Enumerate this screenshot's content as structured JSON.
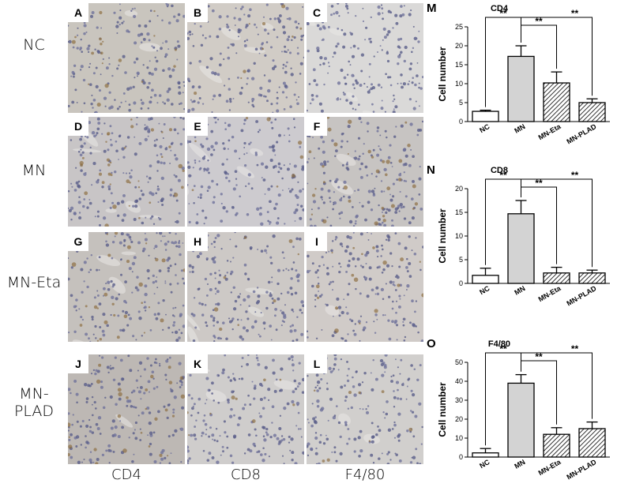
{
  "row_labels": [
    "NC",
    "MN",
    "MN-Eta",
    "MN-PLAD"
  ],
  "column_labels": [
    "CD4",
    "CD8",
    "F4/80"
  ],
  "panels": [
    {
      "letter": "A",
      "tint": "#c9c5be",
      "stain": 2
    },
    {
      "letter": "B",
      "tint": "#d1ccc6",
      "stain": 1
    },
    {
      "letter": "C",
      "tint": "#dad9d8",
      "stain": 0
    },
    {
      "letter": "D",
      "tint": "#c8c5c6",
      "stain": 4
    },
    {
      "letter": "E",
      "tint": "#cdcbcf",
      "stain": 1
    },
    {
      "letter": "F",
      "tint": "#c7c4c2",
      "stain": 4
    },
    {
      "letter": "G",
      "tint": "#c5c1bd",
      "stain": 3
    },
    {
      "letter": "H",
      "tint": "#cdc9c6",
      "stain": 1
    },
    {
      "letter": "I",
      "tint": "#d0cbc8",
      "stain": 2
    },
    {
      "letter": "J",
      "tint": "#bdb8b4",
      "stain": 3
    },
    {
      "letter": "K",
      "tint": "#cfcdcc",
      "stain": 1
    },
    {
      "letter": "L",
      "tint": "#d1cfcd",
      "stain": 1
    }
  ],
  "chart_data": [
    {
      "letter": "M",
      "type": "bar",
      "title": "CD4",
      "ylabel": "Cell number",
      "categories": [
        "NC",
        "MN",
        "MN-Eta",
        "MN-PLAD"
      ],
      "values": [
        2.7,
        17.2,
        10.2,
        5.0
      ],
      "errors": [
        0.3,
        2.8,
        2.9,
        1.0
      ],
      "fills": [
        "white",
        "gray",
        "hatch",
        "hatch"
      ],
      "ylim": [
        0,
        25
      ],
      "yticks": [
        0,
        5,
        10,
        15,
        20,
        25
      ],
      "significance": [
        {
          "from": "NC",
          "to": "MN",
          "label": "**"
        },
        {
          "from": "MN",
          "to": "MN-Eta",
          "label": "**"
        },
        {
          "from": "MN",
          "to": "MN-PLAD",
          "label": "**"
        }
      ]
    },
    {
      "letter": "N",
      "type": "bar",
      "title": "CD8",
      "ylabel": "Cell number",
      "categories": [
        "NC",
        "MN",
        "MN-Eta",
        "MN-PLAD"
      ],
      "values": [
        1.7,
        14.7,
        2.2,
        2.2
      ],
      "errors": [
        1.5,
        2.8,
        1.2,
        0.6
      ],
      "fills": [
        "white",
        "gray",
        "hatch",
        "hatch"
      ],
      "ylim": [
        0,
        20
      ],
      "yticks": [
        0,
        5,
        10,
        15,
        20
      ],
      "significance": [
        {
          "from": "NC",
          "to": "MN",
          "label": "**"
        },
        {
          "from": "MN",
          "to": "MN-Eta",
          "label": "**"
        },
        {
          "from": "MN",
          "to": "MN-PLAD",
          "label": "**"
        }
      ]
    },
    {
      "letter": "O",
      "type": "bar",
      "title": "F4/80",
      "ylabel": "Cell number",
      "categories": [
        "NC",
        "MN",
        "MN-Eta",
        "MN-PLAD"
      ],
      "values": [
        2.2,
        39.0,
        12.0,
        15.0
      ],
      "errors": [
        2.3,
        4.5,
        3.5,
        3.5
      ],
      "fills": [
        "white",
        "gray",
        "hatch",
        "hatch"
      ],
      "ylim": [
        0,
        50
      ],
      "yticks": [
        0,
        10,
        20,
        30,
        40,
        50
      ],
      "significance": [
        {
          "from": "NC",
          "to": "MN",
          "label": "**"
        },
        {
          "from": "MN",
          "to": "MN-Eta",
          "label": "**"
        },
        {
          "from": "MN",
          "to": "MN-PLAD",
          "label": "**"
        }
      ]
    }
  ]
}
